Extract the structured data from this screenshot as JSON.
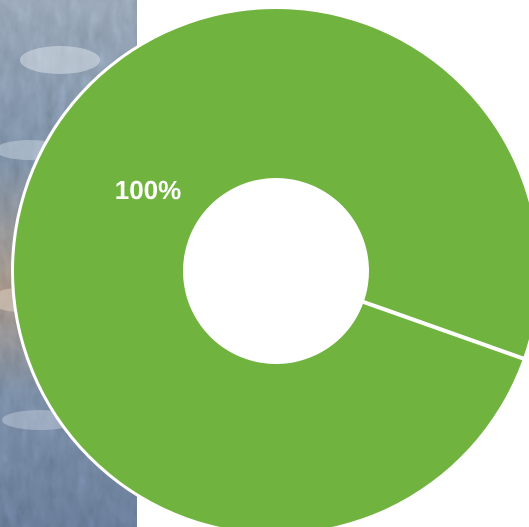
{
  "background": {
    "photo_strip": "water-photo"
  },
  "chart_data": {
    "type": "pie",
    "style": "donut",
    "categories": [
      "",
      ""
    ],
    "values": [
      100,
      0
    ],
    "data_labels": [
      "100%",
      ""
    ],
    "colors": [
      "#70B33F",
      "#70B33F"
    ],
    "separator_color": "#ffffff",
    "legend": "none",
    "title": ""
  }
}
